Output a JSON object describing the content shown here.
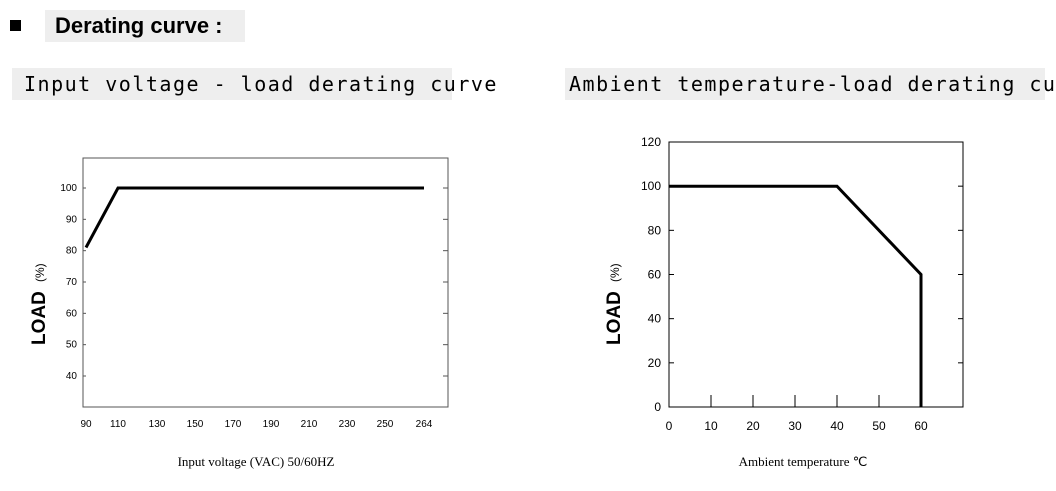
{
  "header": {
    "title": "Derating curve :"
  },
  "chart_data": [
    {
      "type": "line",
      "title": "Input voltage - load derating curve",
      "xlabel": "Input voltage (VAC) 50/60HZ",
      "ylabel": "LOAD",
      "ylabel_unit": "(%)",
      "x_tick_labels": [
        "90",
        "110",
        "130",
        "150",
        "170",
        "190",
        "210",
        "230",
        "250",
        "264"
      ],
      "y_tick_labels": [
        "40",
        "50",
        "60",
        "70",
        "80",
        "90",
        "100"
      ],
      "series": [
        {
          "x": [
            90,
            110,
            264
          ],
          "y": [
            81,
            100,
            100
          ]
        }
      ],
      "grid": false
    },
    {
      "type": "line",
      "title": "Ambient temperature-load derating curve",
      "xlabel": "Ambient temperature ℃",
      "ylabel": "LOAD",
      "ylabel_unit": "(%)",
      "x_tick_labels": [
        "0",
        "10",
        "20",
        "30",
        "40",
        "50",
        "60"
      ],
      "y_tick_labels": [
        "0",
        "20",
        "40",
        "60",
        "80",
        "100",
        "120"
      ],
      "xlim": [
        0,
        70
      ],
      "ylim": [
        0,
        120
      ],
      "series": [
        {
          "x": [
            0,
            40,
            60,
            60
          ],
          "y": [
            100,
            100,
            60,
            0
          ]
        }
      ],
      "grid": false
    }
  ]
}
